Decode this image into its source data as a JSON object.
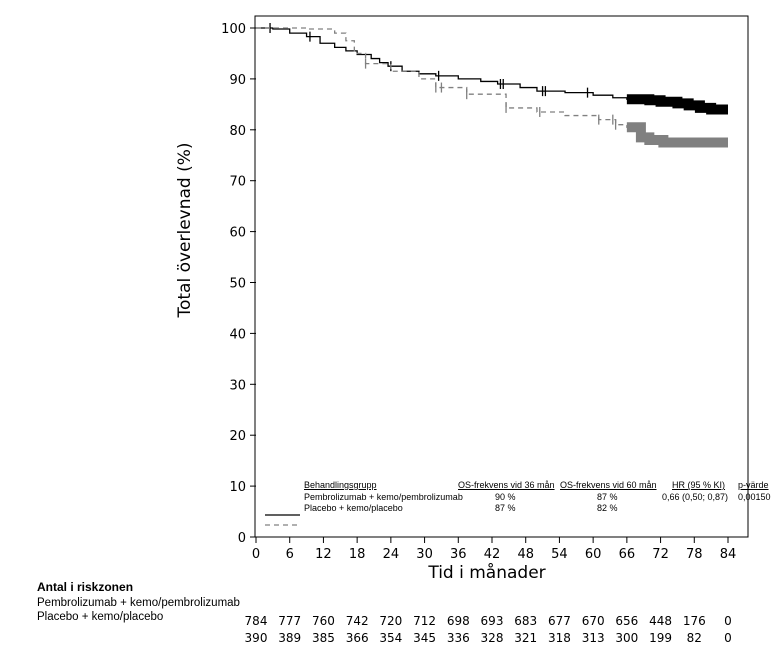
{
  "chart_data": {
    "type": "line",
    "title": "",
    "xlabel": "Tid i månader",
    "ylabel": "Total överlevnad (%)",
    "xlim": [
      0,
      84
    ],
    "ylim": [
      0,
      100
    ],
    "xticks": [
      0,
      6,
      12,
      18,
      24,
      30,
      36,
      42,
      48,
      54,
      60,
      66,
      72,
      78,
      84
    ],
    "yticks": [
      0,
      10,
      20,
      30,
      40,
      50,
      60,
      70,
      80,
      90,
      100
    ],
    "grid": false,
    "series": [
      {
        "name": "Pembrolizumab + kemo/pembrolizumab",
        "color": "#000000",
        "style": "solid",
        "x": [
          0,
          3,
          6,
          9,
          11.4,
          14,
          16,
          18,
          20.5,
          22,
          23.5,
          26,
          29,
          32,
          36,
          40,
          43,
          47,
          50,
          55,
          60,
          63.5,
          66,
          70,
          72,
          75,
          77,
          79,
          81,
          84
        ],
        "y": [
          100,
          99.8,
          99,
          98.3,
          97,
          96.2,
          95.5,
          94.8,
          94,
          93.2,
          92.5,
          91.5,
          91,
          90.6,
          90,
          89.5,
          89,
          88.3,
          87.6,
          87.3,
          86.8,
          86.3,
          86,
          85.8,
          85.5,
          85.2,
          84.8,
          84.3,
          84,
          84
        ],
        "censored_x": [
          2.5,
          9.6,
          24,
          32.5,
          43.5,
          44,
          51,
          51.5,
          59
        ],
        "censored_dense_from": 66
      },
      {
        "name": "Placebo + kemo/placebo",
        "color": "#808080",
        "style": "dashed",
        "x": [
          0,
          9,
          14,
          16,
          17.5,
          19.5,
          24,
          29,
          32,
          37.5,
          44.5,
          50,
          55,
          61,
          64,
          66,
          68.5,
          70,
          72.5,
          84
        ],
        "y": [
          100,
          99.8,
          99,
          97.5,
          95,
          93,
          91.5,
          90,
          88.3,
          87,
          84.3,
          83.5,
          82.8,
          82,
          81,
          80.5,
          78.5,
          78,
          77.5,
          77.5
        ],
        "censored_x": [
          19.5,
          32,
          33,
          37.5,
          44.5,
          50.5,
          61,
          63.5,
          64
        ],
        "censored_dense_from": 66
      }
    ],
    "legend": {
      "placement": "bottom",
      "headers": [
        "Behandlingsgrupp",
        "OS-frekvens vid 36 mån",
        "OS-frekvens vid 60 mån",
        "HR (95 % KI)",
        "p-värde"
      ],
      "rows": [
        [
          "Pembrolizumab + kemo/pembrolizumab",
          "90 %",
          "87 %",
          "0,66 (0,50; 0,87)",
          "0,00150"
        ],
        [
          "Placebo + kemo/placebo",
          "87 %",
          "82 %",
          "",
          ""
        ]
      ]
    },
    "at_risk": {
      "title": "Antal i riskzonen",
      "groups": [
        {
          "name": "Pembrolizumab + kemo/pembrolizumab",
          "values": [
            784,
            777,
            760,
            742,
            720,
            712,
            698,
            693,
            683,
            677,
            670,
            656,
            448,
            176,
            0
          ]
        },
        {
          "name": "Placebo + kemo/placebo",
          "values": [
            390,
            389,
            385,
            366,
            354,
            345,
            336,
            328,
            321,
            318,
            313,
            300,
            199,
            82,
            0
          ]
        }
      ]
    }
  }
}
